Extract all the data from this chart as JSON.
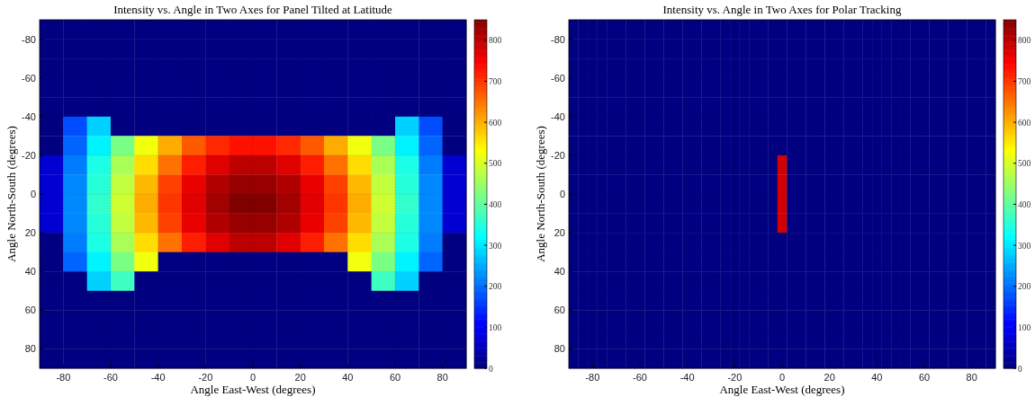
{
  "chart_data": [
    {
      "type": "heatmap",
      "title": "Intensity vs. Angle in Two Axes for Panel Tilted at Latitude",
      "xlabel": "Angle East-West (degrees)",
      "ylabel": "Angle North-South (degrees)",
      "x": [
        -85,
        -75,
        -65,
        -55,
        -45,
        -35,
        -25,
        -15,
        -5,
        5,
        15,
        25,
        35,
        45,
        55,
        65,
        75,
        85
      ],
      "y": [
        -85,
        -75,
        -65,
        -55,
        -45,
        -35,
        -25,
        -15,
        -5,
        5,
        15,
        25,
        35,
        45,
        55,
        65,
        75,
        85
      ],
      "cells": [
        [
          0,
          0,
          0,
          0,
          0,
          0,
          0,
          0,
          0,
          0,
          0,
          0,
          0,
          0,
          0,
          0,
          0,
          0
        ],
        [
          0,
          0,
          0,
          0,
          0,
          0,
          0,
          0,
          0,
          0,
          0,
          0,
          0,
          0,
          0,
          0,
          0,
          0
        ],
        [
          0,
          0,
          0,
          0,
          0,
          0,
          0,
          0,
          0,
          0,
          0,
          0,
          0,
          0,
          0,
          0,
          0,
          0
        ],
        [
          0,
          0,
          0,
          0,
          0,
          0,
          0,
          0,
          0,
          0,
          0,
          0,
          0,
          0,
          0,
          0,
          0,
          0
        ],
        [
          0,
          0,
          0,
          0,
          0,
          0,
          0,
          0,
          0,
          0,
          0,
          0,
          0,
          0,
          0,
          0,
          0,
          0
        ],
        [
          0,
          170,
          280,
          0,
          0,
          0,
          0,
          0,
          0,
          0,
          0,
          0,
          0,
          0,
          0,
          280,
          170,
          0
        ],
        [
          0,
          190,
          310,
          420,
          520,
          600,
          670,
          710,
          730,
          730,
          710,
          670,
          600,
          520,
          420,
          310,
          190,
          0
        ],
        [
          70,
          210,
          340,
          460,
          560,
          650,
          720,
          770,
          800,
          800,
          770,
          720,
          650,
          560,
          460,
          340,
          210,
          70
        ],
        [
          70,
          220,
          350,
          480,
          590,
          690,
          760,
          810,
          830,
          830,
          810,
          760,
          690,
          590,
          480,
          350,
          220,
          70
        ],
        [
          70,
          220,
          360,
          490,
          600,
          700,
          770,
          820,
          850,
          850,
          820,
          770,
          700,
          600,
          490,
          360,
          220,
          70
        ],
        [
          70,
          220,
          350,
          480,
          590,
          690,
          760,
          810,
          830,
          830,
          810,
          760,
          690,
          590,
          480,
          350,
          220,
          70
        ],
        [
          0,
          210,
          340,
          460,
          560,
          650,
          720,
          770,
          800,
          800,
          770,
          720,
          650,
          560,
          460,
          340,
          210,
          0
        ],
        [
          0,
          190,
          310,
          420,
          520,
          0,
          0,
          0,
          0,
          0,
          0,
          0,
          0,
          520,
          420,
          310,
          190,
          0
        ],
        [
          0,
          0,
          280,
          370,
          0,
          0,
          0,
          0,
          0,
          0,
          0,
          0,
          0,
          0,
          370,
          280,
          0,
          0
        ],
        [
          0,
          0,
          0,
          0,
          0,
          0,
          0,
          0,
          0,
          0,
          0,
          0,
          0,
          0,
          0,
          0,
          0,
          0
        ],
        [
          0,
          0,
          0,
          0,
          0,
          0,
          0,
          0,
          0,
          0,
          0,
          0,
          0,
          0,
          0,
          0,
          0,
          0
        ],
        [
          0,
          0,
          0,
          0,
          0,
          0,
          0,
          0,
          0,
          0,
          0,
          0,
          0,
          0,
          0,
          0,
          0,
          0
        ],
        [
          0,
          0,
          0,
          0,
          0,
          0,
          0,
          0,
          0,
          0,
          0,
          0,
          0,
          0,
          0,
          0,
          0,
          0
        ]
      ],
      "xlim": [
        -90,
        90
      ],
      "ylim": [
        90,
        -90
      ],
      "xticks": [
        -80,
        -60,
        -40,
        -20,
        0,
        20,
        40,
        60,
        80
      ],
      "yticks": [
        80,
        60,
        40,
        20,
        0,
        -20,
        -40,
        -60,
        -80
      ],
      "clim": [
        0,
        850
      ],
      "cticks": [
        0,
        100,
        200,
        300,
        400,
        500,
        600,
        700,
        800
      ],
      "grid": true
    },
    {
      "type": "heatmap",
      "title": "Intensity vs. Angle in Two Axes for Polar Tracking",
      "xlabel": "Angle East-West (degrees)",
      "ylabel": "Angle North-South (degrees)",
      "x": [
        -88,
        -84,
        -80,
        -76,
        -72,
        -68,
        -64,
        -60,
        -56,
        -52,
        -48,
        -44,
        -40,
        -36,
        -32,
        -28,
        -24,
        -20,
        -16,
        -12,
        -8,
        -4,
        0,
        4,
        8,
        12,
        16,
        20,
        24,
        28,
        32,
        36,
        40,
        44,
        48,
        52,
        56,
        60,
        64,
        68,
        72,
        76,
        80,
        84,
        88
      ],
      "y": [
        -85,
        -75,
        -65,
        -55,
        -45,
        -35,
        -25,
        -15,
        -5,
        5,
        15,
        25,
        35,
        45,
        55,
        65,
        75,
        85
      ],
      "cells": [
        [
          0,
          0,
          0,
          0,
          0,
          0,
          0,
          0,
          0,
          0,
          0,
          0,
          0,
          0,
          0,
          0,
          0,
          0,
          0,
          0,
          0,
          0,
          0,
          0,
          0,
          0,
          0,
          0,
          0,
          0,
          0,
          0,
          0,
          0,
          0,
          0,
          0,
          0,
          0,
          0,
          0,
          0,
          0,
          0,
          0
        ],
        [
          0,
          0,
          0,
          0,
          0,
          0,
          0,
          0,
          0,
          0,
          0,
          0,
          0,
          0,
          0,
          0,
          0,
          0,
          0,
          0,
          0,
          0,
          0,
          0,
          0,
          0,
          0,
          0,
          0,
          0,
          0,
          0,
          0,
          0,
          0,
          0,
          0,
          0,
          0,
          0,
          0,
          0,
          0,
          0,
          0
        ],
        [
          0,
          0,
          0,
          0,
          0,
          0,
          0,
          0,
          0,
          0,
          0,
          0,
          0,
          0,
          0,
          0,
          0,
          0,
          0,
          0,
          0,
          0,
          0,
          0,
          0,
          0,
          0,
          0,
          0,
          0,
          0,
          0,
          0,
          0,
          0,
          0,
          0,
          0,
          0,
          0,
          0,
          0,
          0,
          0,
          0
        ],
        [
          0,
          0,
          0,
          0,
          0,
          0,
          0,
          0,
          0,
          0,
          0,
          0,
          0,
          0,
          0,
          0,
          0,
          0,
          0,
          0,
          0,
          0,
          0,
          0,
          0,
          0,
          0,
          0,
          0,
          0,
          0,
          0,
          0,
          0,
          0,
          0,
          0,
          0,
          0,
          0,
          0,
          0,
          0,
          0,
          0
        ],
        [
          0,
          0,
          0,
          0,
          0,
          0,
          0,
          0,
          0,
          0,
          0,
          0,
          0,
          0,
          0,
          0,
          0,
          0,
          0,
          0,
          0,
          0,
          0,
          0,
          0,
          0,
          0,
          0,
          0,
          0,
          0,
          0,
          0,
          0,
          0,
          0,
          0,
          0,
          0,
          0,
          0,
          0,
          0,
          0,
          0
        ],
        [
          0,
          0,
          0,
          0,
          0,
          0,
          0,
          0,
          0,
          0,
          0,
          0,
          0,
          0,
          0,
          0,
          0,
          0,
          0,
          0,
          0,
          0,
          0,
          0,
          0,
          0,
          0,
          0,
          0,
          0,
          0,
          0,
          0,
          0,
          0,
          0,
          0,
          0,
          0,
          0,
          0,
          0,
          0,
          0,
          0
        ],
        [
          0,
          0,
          0,
          0,
          0,
          0,
          0,
          0,
          0,
          0,
          0,
          0,
          0,
          0,
          0,
          0,
          0,
          0,
          0,
          0,
          0,
          0,
          0,
          0,
          0,
          0,
          0,
          0,
          0,
          0,
          0,
          0,
          0,
          0,
          0,
          0,
          0,
          0,
          0,
          0,
          0,
          0,
          0,
          0,
          0
        ],
        [
          0,
          0,
          0,
          0,
          0,
          0,
          0,
          0,
          0,
          0,
          0,
          0,
          0,
          0,
          0,
          0,
          0,
          0,
          0,
          0,
          0,
          0,
          780,
          0,
          0,
          0,
          0,
          0,
          0,
          0,
          0,
          0,
          0,
          0,
          0,
          0,
          0,
          0,
          0,
          0,
          0,
          0,
          0,
          0,
          0
        ],
        [
          0,
          0,
          0,
          0,
          0,
          0,
          0,
          0,
          0,
          0,
          0,
          0,
          0,
          0,
          0,
          0,
          0,
          0,
          0,
          0,
          0,
          0,
          780,
          0,
          0,
          0,
          0,
          0,
          0,
          0,
          0,
          0,
          0,
          0,
          0,
          0,
          0,
          0,
          0,
          0,
          0,
          0,
          0,
          0,
          0
        ],
        [
          0,
          0,
          0,
          0,
          0,
          0,
          0,
          0,
          0,
          0,
          0,
          0,
          0,
          0,
          0,
          0,
          0,
          0,
          0,
          0,
          0,
          0,
          780,
          0,
          0,
          0,
          0,
          0,
          0,
          0,
          0,
          0,
          0,
          0,
          0,
          0,
          0,
          0,
          0,
          0,
          0,
          0,
          0,
          0,
          0
        ],
        [
          0,
          0,
          0,
          0,
          0,
          0,
          0,
          0,
          0,
          0,
          0,
          0,
          0,
          0,
          0,
          0,
          0,
          0,
          0,
          0,
          0,
          0,
          780,
          0,
          0,
          0,
          0,
          0,
          0,
          0,
          0,
          0,
          0,
          0,
          0,
          0,
          0,
          0,
          0,
          0,
          0,
          0,
          0,
          0,
          0
        ],
        [
          0,
          0,
          0,
          0,
          0,
          0,
          0,
          0,
          0,
          0,
          0,
          0,
          0,
          0,
          0,
          0,
          0,
          0,
          0,
          0,
          0,
          0,
          0,
          0,
          0,
          0,
          0,
          0,
          0,
          0,
          0,
          0,
          0,
          0,
          0,
          0,
          0,
          0,
          0,
          0,
          0,
          0,
          0,
          0,
          0
        ],
        [
          0,
          0,
          0,
          0,
          0,
          0,
          0,
          0,
          0,
          0,
          0,
          0,
          0,
          0,
          0,
          0,
          0,
          0,
          0,
          0,
          0,
          0,
          0,
          0,
          0,
          0,
          0,
          0,
          0,
          0,
          0,
          0,
          0,
          0,
          0,
          0,
          0,
          0,
          0,
          0,
          0,
          0,
          0,
          0,
          0
        ],
        [
          0,
          0,
          0,
          0,
          0,
          0,
          0,
          0,
          0,
          0,
          0,
          0,
          0,
          0,
          0,
          0,
          0,
          0,
          0,
          0,
          0,
          0,
          0,
          0,
          0,
          0,
          0,
          0,
          0,
          0,
          0,
          0,
          0,
          0,
          0,
          0,
          0,
          0,
          0,
          0,
          0,
          0,
          0,
          0,
          0
        ],
        [
          0,
          0,
          0,
          0,
          0,
          0,
          0,
          0,
          0,
          0,
          0,
          0,
          0,
          0,
          0,
          0,
          0,
          0,
          0,
          0,
          0,
          0,
          0,
          0,
          0,
          0,
          0,
          0,
          0,
          0,
          0,
          0,
          0,
          0,
          0,
          0,
          0,
          0,
          0,
          0,
          0,
          0,
          0,
          0,
          0
        ],
        [
          0,
          0,
          0,
          0,
          0,
          0,
          0,
          0,
          0,
          0,
          0,
          0,
          0,
          0,
          0,
          0,
          0,
          0,
          0,
          0,
          0,
          0,
          0,
          0,
          0,
          0,
          0,
          0,
          0,
          0,
          0,
          0,
          0,
          0,
          0,
          0,
          0,
          0,
          0,
          0,
          0,
          0,
          0,
          0,
          0
        ],
        [
          0,
          0,
          0,
          0,
          0,
          0,
          0,
          0,
          0,
          0,
          0,
          0,
          0,
          0,
          0,
          0,
          0,
          0,
          0,
          0,
          0,
          0,
          0,
          0,
          0,
          0,
          0,
          0,
          0,
          0,
          0,
          0,
          0,
          0,
          0,
          0,
          0,
          0,
          0,
          0,
          0,
          0,
          0,
          0,
          0
        ],
        [
          0,
          0,
          0,
          0,
          0,
          0,
          0,
          0,
          0,
          0,
          0,
          0,
          0,
          0,
          0,
          0,
          0,
          0,
          0,
          0,
          0,
          0,
          0,
          0,
          0,
          0,
          0,
          0,
          0,
          0,
          0,
          0,
          0,
          0,
          0,
          0,
          0,
          0,
          0,
          0,
          0,
          0,
          0,
          0,
          0
        ]
      ],
      "xlim": [
        -90,
        90
      ],
      "ylim": [
        90,
        -90
      ],
      "xticks": [
        -80,
        -60,
        -40,
        -20,
        0,
        20,
        40,
        60,
        80
      ],
      "yticks": [
        80,
        60,
        40,
        20,
        0,
        -20,
        -40,
        -60,
        -80
      ],
      "clim": [
        0,
        850
      ],
      "cticks": [
        0,
        100,
        200,
        300,
        400,
        500,
        600,
        700,
        800
      ],
      "grid": true
    }
  ]
}
